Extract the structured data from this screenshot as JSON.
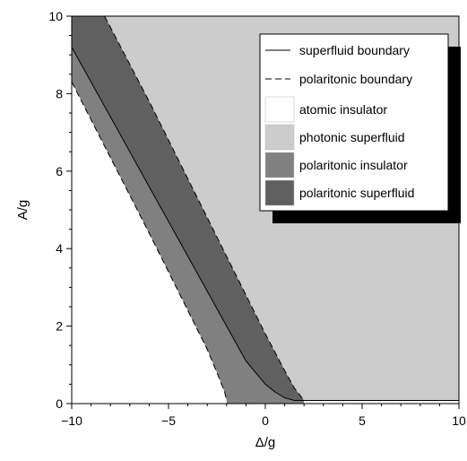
{
  "chart_data": {
    "type": "area",
    "title": "",
    "xlabel": "Δ/g",
    "ylabel": "A/g",
    "xlim": [
      -10,
      10
    ],
    "ylim": [
      0,
      10
    ],
    "xticks": [
      "−10",
      "−5",
      "0",
      "5",
      "10"
    ],
    "yticks": [
      "0",
      "2",
      "4",
      "6",
      "8",
      "10"
    ],
    "grid": false,
    "legend_position": "top-right",
    "regions": [
      {
        "name": "atomic insulator",
        "color": "#ffffff"
      },
      {
        "name": "photonic superfluid",
        "color": "#cccccc"
      },
      {
        "name": "polaritonic insulator",
        "color": "#808080"
      },
      {
        "name": "polaritonic superfluid",
        "color": "#606060"
      }
    ],
    "boundaries": {
      "superfluid_boundary": {
        "name": "superfluid boundary",
        "style": "solid",
        "x": [
          -10,
          -8,
          -6,
          -4,
          -2,
          -1,
          0,
          0.5,
          1,
          1.5,
          2,
          10
        ],
        "y": [
          9.2,
          7.4,
          5.6,
          3.8,
          2.0,
          1.1,
          0.5,
          0.3,
          0.15,
          0.08,
          0.08,
          0.08
        ]
      },
      "polaritonic_boundary_upper": {
        "name": "polaritonic boundary",
        "style": "dashed",
        "x": [
          -8.3,
          -6,
          -4,
          -2,
          0,
          1,
          1.5,
          2,
          10
        ],
        "y": [
          10.0,
          7.8,
          5.8,
          3.8,
          1.8,
          0.85,
          0.4,
          0.08,
          0.08
        ]
      },
      "polaritonic_boundary_lower": {
        "name": "polaritonic boundary",
        "style": "dashed",
        "x": [
          -10,
          -8,
          -6,
          -4,
          -3,
          -2.5,
          -2.1,
          -2
        ],
        "y": [
          8.3,
          6.35,
          4.4,
          2.4,
          1.4,
          0.8,
          0.3,
          0.08
        ]
      }
    },
    "legend": [
      {
        "kind": "line-solid",
        "label": "superfluid boundary"
      },
      {
        "kind": "line-dashed",
        "label": "polaritonic boundary"
      },
      {
        "kind": "swatch",
        "label": "atomic insulator",
        "color": "#ffffff"
      },
      {
        "kind": "swatch",
        "label": "photonic superfluid",
        "color": "#cccccc"
      },
      {
        "kind": "swatch",
        "label": "polaritonic insulator",
        "color": "#808080"
      },
      {
        "kind": "swatch",
        "label": "polaritonic superfluid",
        "color": "#606060"
      }
    ]
  }
}
